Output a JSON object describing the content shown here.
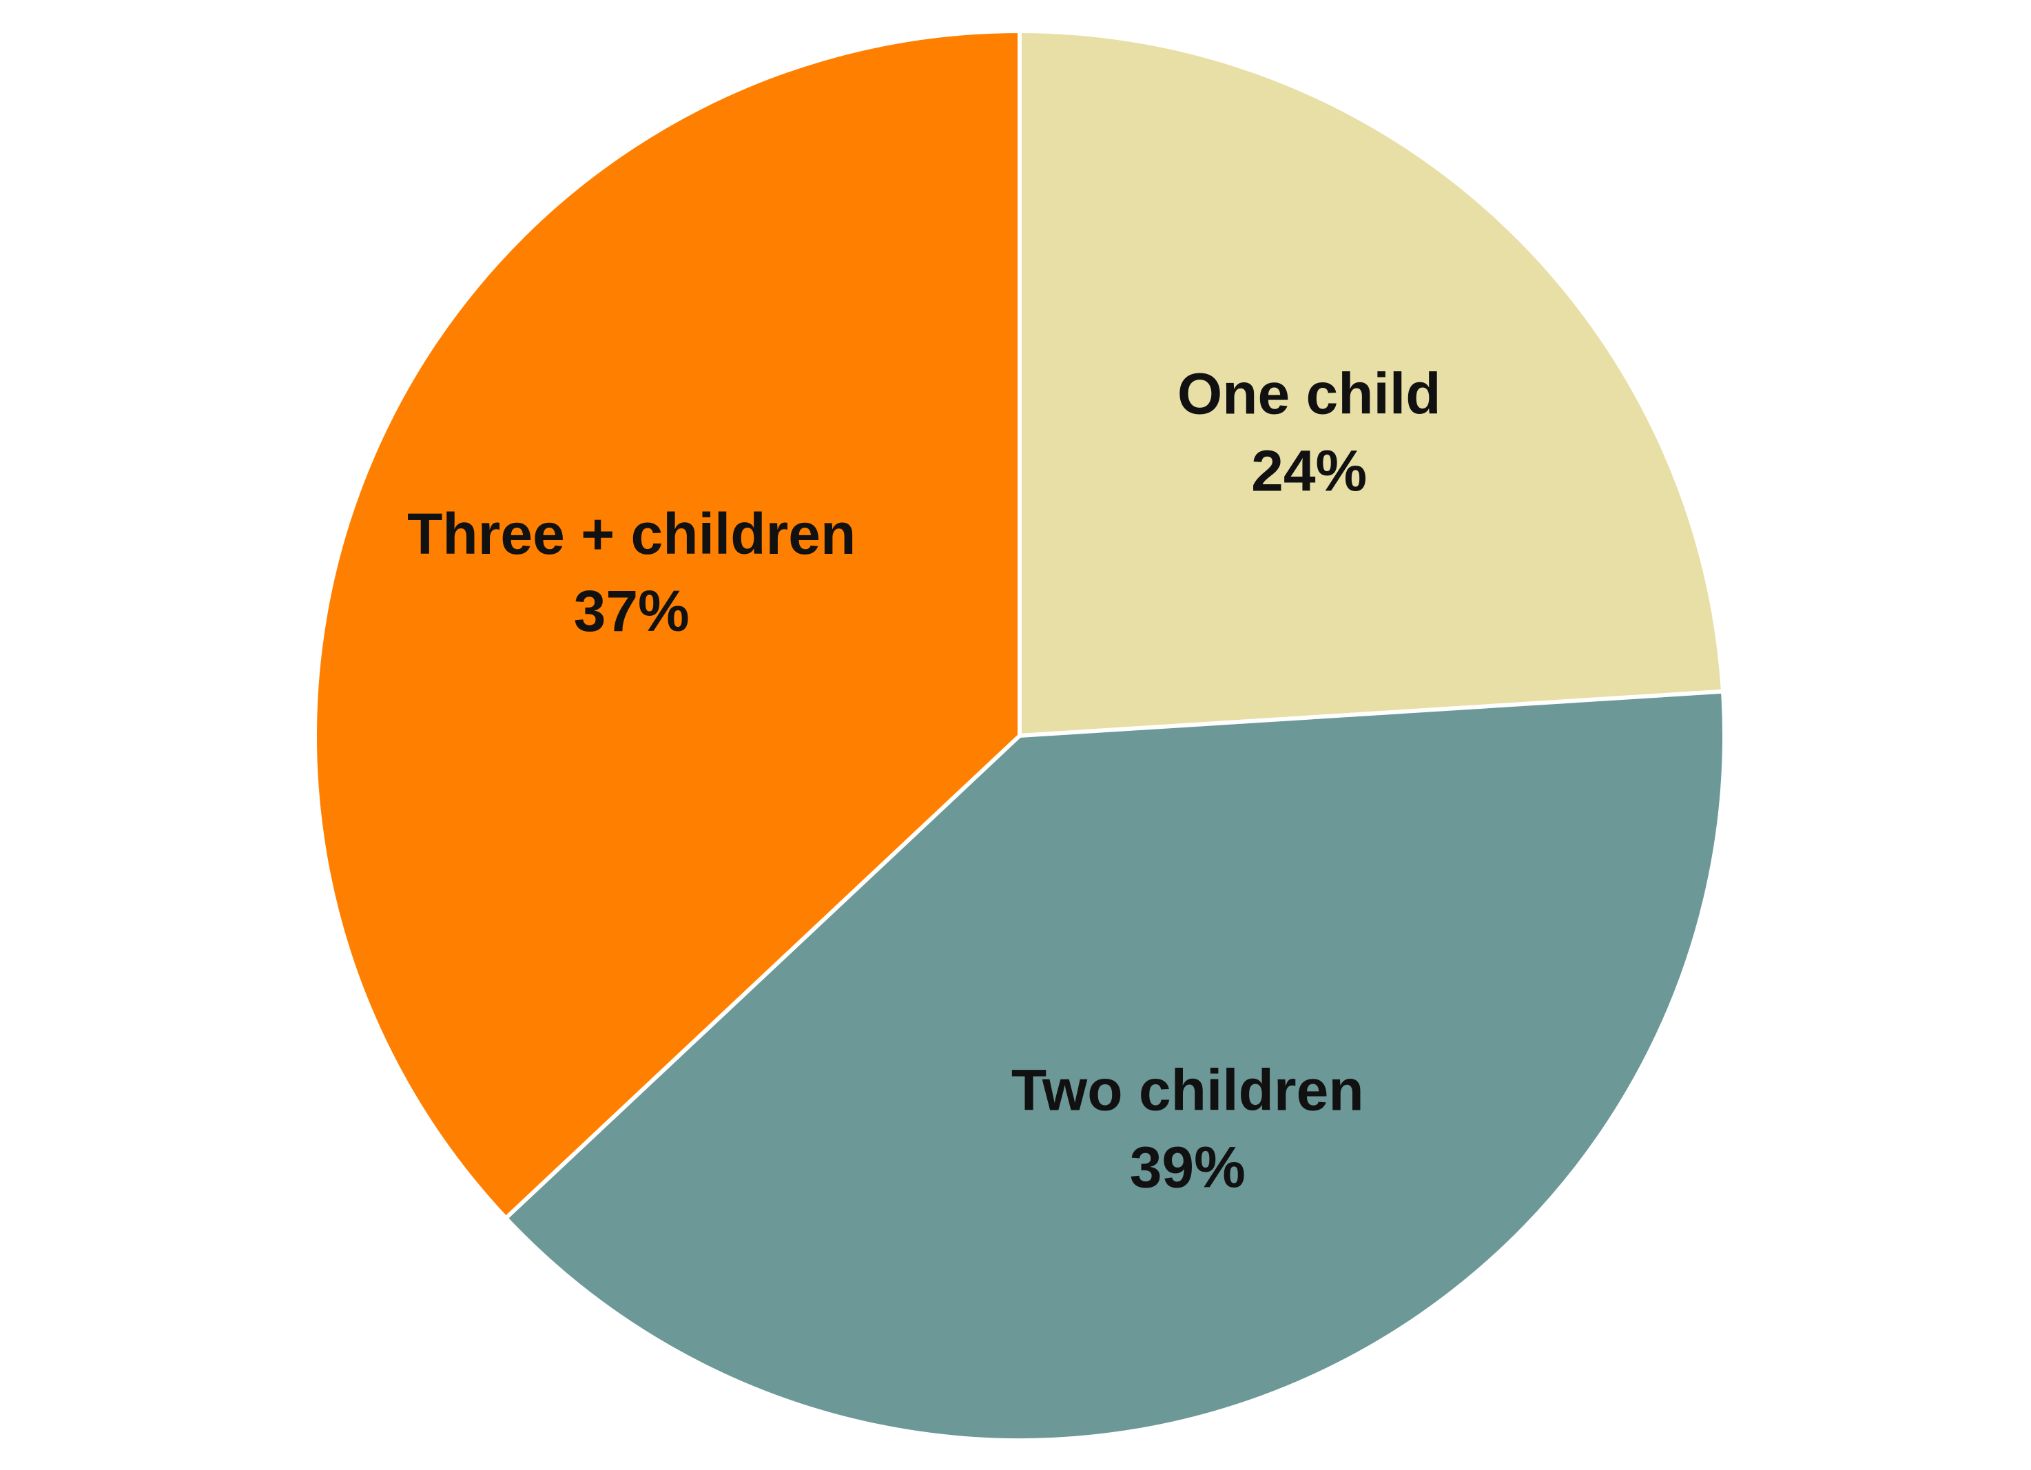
{
  "chart_data": {
    "type": "pie",
    "title": "",
    "start_angle_deg": 0,
    "direction": "clockwise",
    "slices": [
      {
        "label": "One child",
        "value": 24,
        "value_label": "24%",
        "color": "#E8DFA6"
      },
      {
        "label": "Two children",
        "value": 39,
        "value_label": "39%",
        "color": "#6D9898"
      },
      {
        "label": "Three + children",
        "value": 37,
        "value_label": "37%",
        "color": "#FF8000"
      }
    ],
    "legend": "none",
    "labels_inside": true
  }
}
